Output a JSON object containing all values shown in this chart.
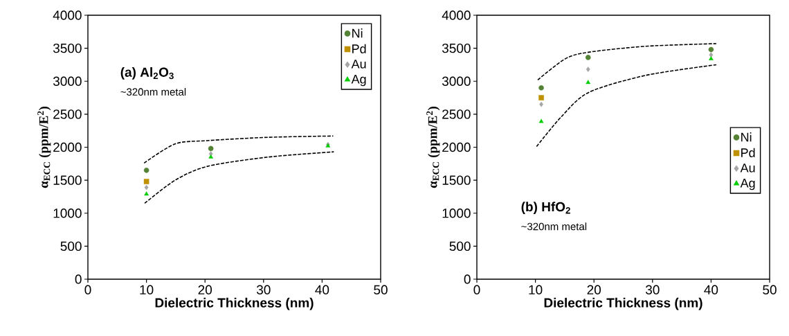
{
  "chart_data": [
    {
      "type": "scatter",
      "xlabel": "Dielectric Thickness (nm)",
      "ylabel": "α$_{ECC}$ (ppm/E$^{2}$)",
      "annotations": [
        "(a) Al$_{2}$O$_{3}$",
        "~320nm metal"
      ],
      "x": [
        10,
        21,
        41
      ],
      "series": [
        {
          "name": "Ni",
          "color": "#548235",
          "marker": "circle",
          "values": [
            1650,
            1980,
            null
          ]
        },
        {
          "name": "Pd",
          "color": "#bf9000",
          "marker": "square",
          "values": [
            1480,
            null,
            null
          ]
        },
        {
          "name": "Au",
          "color": "#a6a6a6",
          "marker": "diamond",
          "values": [
            1390,
            1900,
            2040
          ]
        },
        {
          "name": "Ag",
          "color": "#00cc00",
          "marker": "triangle",
          "values": [
            1290,
            1850,
            2020
          ]
        },
        {
          "type": "line",
          "color": "#000000",
          "line_style": "dashed",
          "marker": "none",
          "x": [
            9.6,
            14.9,
            20.4,
            30.7,
            41.9
          ],
          "values": [
            1760,
            2050,
            2100,
            2150,
            2170
          ]
        },
        {
          "type": "line",
          "color": "#000000",
          "line_style": "dashed",
          "marker": "none",
          "x": [
            9.7,
            14.9,
            20.4,
            30.7,
            42
          ],
          "values": [
            1150,
            1500,
            1710,
            1850,
            1930
          ]
        }
      ],
      "xlim": [
        0,
        50
      ],
      "ylim": [
        0,
        4000
      ],
      "xticks": [
        0,
        10,
        20,
        30,
        40,
        50
      ],
      "yticks": [
        0,
        500,
        1000,
        1500,
        2000,
        2500,
        3000,
        3500,
        4000
      ],
      "legend": "top right",
      "grid": false
    },
    {
      "type": "scatter",
      "xlabel": "Dielectric Thickness (nm)",
      "ylabel": "α$_{ECC}$ (ppm/E$^{2}$)",
      "annotations": [
        "(b) HfO$_{2}$",
        "~320nm metal"
      ],
      "x": [
        11,
        19,
        40
      ],
      "series": [
        {
          "name": "Ni",
          "color": "#548235",
          "marker": "circle",
          "values": [
            2900,
            3360,
            3480
          ]
        },
        {
          "name": "Pd",
          "color": "#bf9000",
          "marker": "square",
          "values": [
            2750,
            null,
            null
          ]
        },
        {
          "name": "Au",
          "color": "#a6a6a6",
          "marker": "diamond",
          "values": [
            2650,
            3180,
            3400
          ]
        },
        {
          "name": "Ag",
          "color": "#00cc00",
          "marker": "triangle",
          "values": [
            2390,
            2980,
            3340
          ]
        },
        {
          "type": "line",
          "color": "#000000",
          "line_style": "dashed",
          "marker": "none",
          "x": [
            10.4,
            15.1,
            19.1,
            28.9,
            40.9
          ],
          "values": [
            3020,
            3340,
            3440,
            3530,
            3570
          ]
        },
        {
          "type": "line",
          "color": "#000000",
          "line_style": "dashed",
          "marker": "none",
          "x": [
            10.2,
            14.4,
            19.1,
            28.9,
            40.9
          ],
          "values": [
            2010,
            2460,
            2830,
            3090,
            3250
          ]
        }
      ],
      "xlim": [
        0,
        50
      ],
      "ylim": [
        0,
        4000
      ],
      "xticks": [
        0,
        10,
        20,
        30,
        40,
        50
      ],
      "yticks": [
        0,
        500,
        1000,
        1500,
        2000,
        2500,
        3000,
        3500,
        4000
      ],
      "legend": "right",
      "grid": false
    }
  ]
}
